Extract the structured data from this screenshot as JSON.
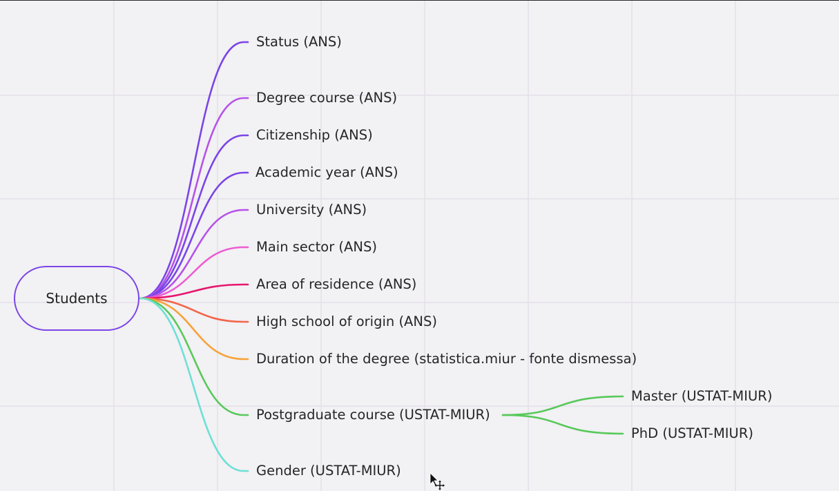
{
  "mindmap": {
    "root": {
      "label": "Students",
      "color": "#7a46e6"
    },
    "branches": [
      {
        "label": "Status (ANS)",
        "color": "#7b45e6"
      },
      {
        "label": "Degree course (ANS)",
        "color": "#b652e8"
      },
      {
        "label": "Citizenship (ANS)",
        "color": "#7b45e6"
      },
      {
        "label": "Academic year (ANS)",
        "color": "#7b45e6"
      },
      {
        "label": "University (ANS)",
        "color": "#b652e8"
      },
      {
        "label": "Main sector (ANS)",
        "color": "#ee5cd0"
      },
      {
        "label": "Area of residence (ANS)",
        "color": "#e6166e"
      },
      {
        "label": "High school of origin (ANS)",
        "color": "#f2654b"
      },
      {
        "label": "Duration of the degree (statistica.miur - fonte dismessa)",
        "color": "#f7a337"
      },
      {
        "label": "Postgraduate course (USTAT-MIUR)",
        "color": "#58c95a",
        "children": [
          {
            "label": "Master (USTAT-MIUR)",
            "color": "#58c95a"
          },
          {
            "label": "PhD (USTAT-MIUR)",
            "color": "#58c95a"
          }
        ]
      },
      {
        "label": "Gender (USTAT-MIUR)",
        "color": "#6de0d6"
      }
    ]
  },
  "cursor_icon": "move-cursor-icon"
}
